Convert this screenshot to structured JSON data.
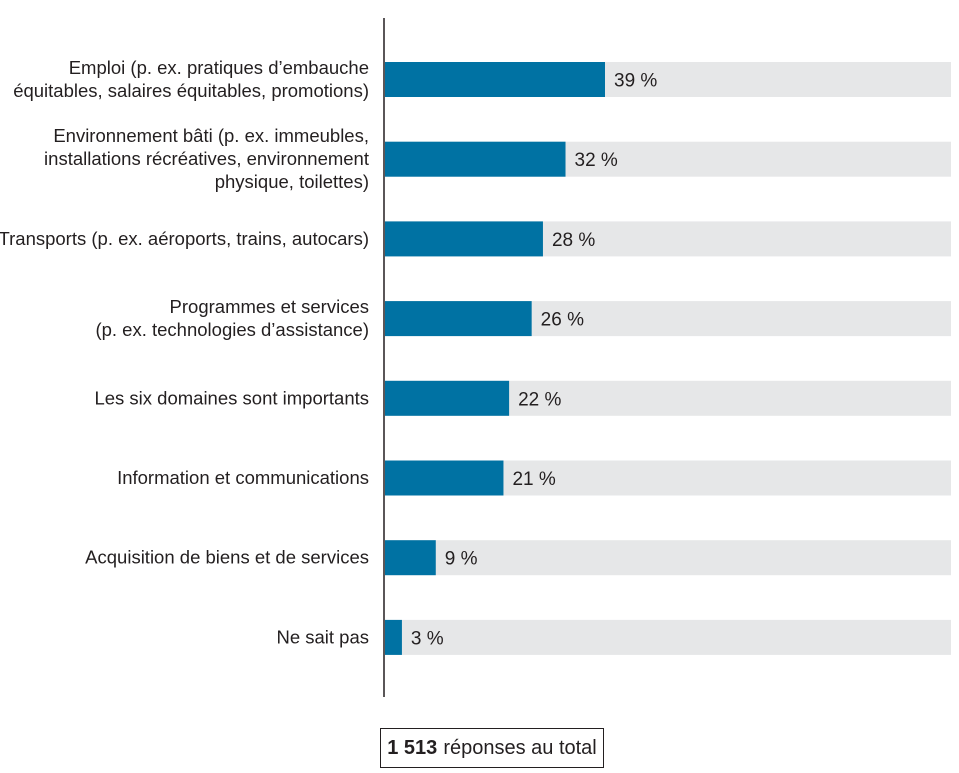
{
  "chart_data": {
    "type": "bar",
    "orientation": "horizontal",
    "categories": [
      [
        "Emploi (p. ex. pratiques d’embauche",
        "équitables, salaires équitables, promotions)"
      ],
      [
        "Environnement bâti (p. ex. immeubles,",
        "installations récréatives, environnement",
        "physique, toilettes)"
      ],
      [
        "Transports (p. ex. aéroports, trains, autocars)"
      ],
      [
        "Programmes et services",
        "(p. ex. technologies d’assistance)"
      ],
      [
        "Les six domaines sont importants"
      ],
      [
        "Information et communications"
      ],
      [
        "Acquisition de biens et de services"
      ],
      [
        "Ne sait pas"
      ]
    ],
    "values": [
      39,
      32,
      28,
      26,
      22,
      21,
      9,
      3
    ],
    "value_labels": [
      "39 %",
      "32 %",
      "28 %",
      "26 %",
      "22 %",
      "21 %",
      "9 %",
      "3 %"
    ],
    "xlim": [
      0,
      100
    ],
    "grid": false,
    "colors": {
      "bar": "#0072a3",
      "track": "#e6e7e8",
      "axis": "#231f20",
      "text": "#231f20"
    }
  },
  "footer": {
    "total_count": "1 513",
    "total_text": "réponses au total"
  }
}
